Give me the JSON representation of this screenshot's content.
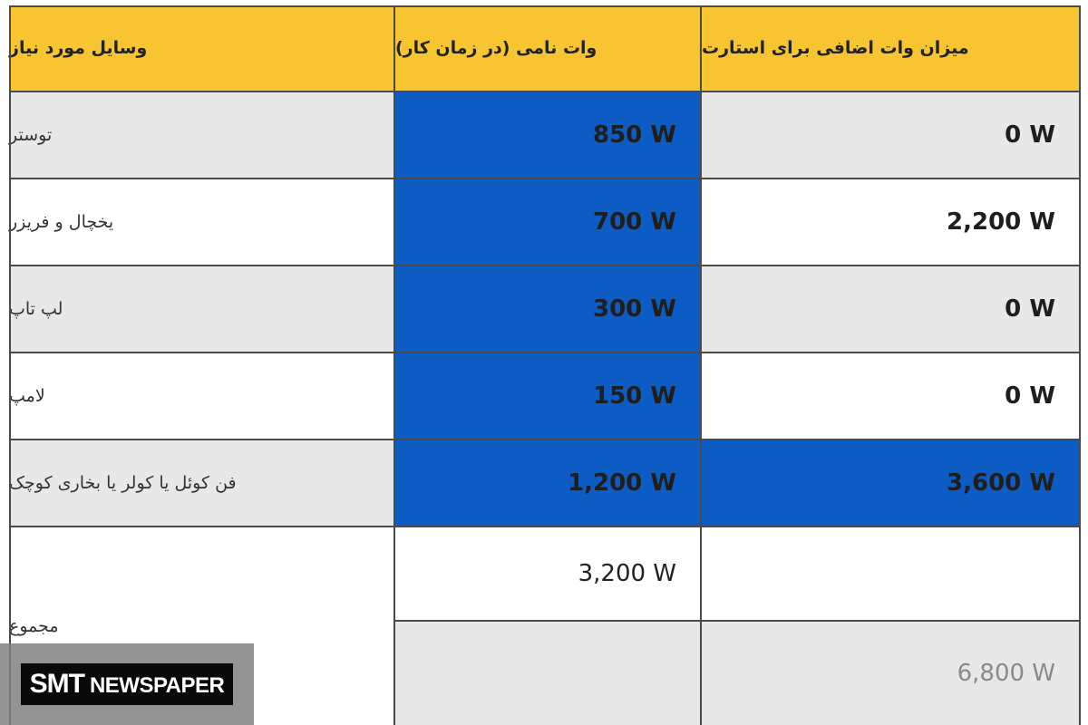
{
  "table": {
    "headers": {
      "items": "وسایل مورد نیاز",
      "rated_watts": "وات نامی (در زمان کار)",
      "starting_watts": "میزان وات اضافی برای استارت"
    },
    "rows": [
      {
        "item": "توستر",
        "rated": "850 W",
        "starting": "0 W"
      },
      {
        "item": "یخچال و فریزر",
        "rated": "700 W",
        "starting": "2,200 W"
      },
      {
        "item": "لپ تاپ",
        "rated": "300 W",
        "starting": "0 W"
      },
      {
        "item": "لامپ",
        "rated": "150 W",
        "starting": "0 W"
      },
      {
        "item": "فن کوئل یا کولر یا بخاری کوچک",
        "rated": "1,200 W",
        "starting": "3,600 W"
      }
    ],
    "total": {
      "label": "مجموع",
      "rated": "3,200 W",
      "combined": "6,800 W"
    }
  },
  "colors": {
    "header": "#f7c531",
    "highlight": "#0d5cc4",
    "row_gray": "#e8e8e8"
  },
  "watermark": {
    "brand": "SMT",
    "sub": "NEWSPAPER"
  }
}
